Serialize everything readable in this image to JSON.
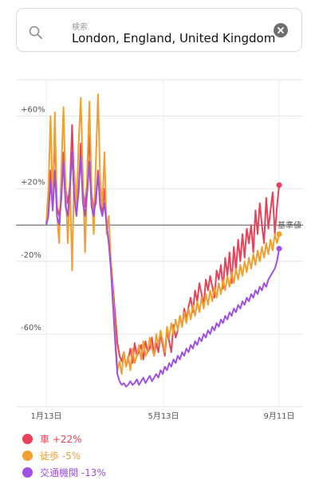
{
  "search": {
    "placeholder": "検索",
    "value": "London, England, United Kingdom"
  },
  "chart_data": {
    "type": "line",
    "x_ticks": [
      "1月13日",
      "5月13日",
      "9月11日"
    ],
    "y_ticks": [
      "+60%",
      "+20%",
      "-20%",
      "-60%"
    ],
    "ylim": [
      -100,
      80
    ],
    "baseline_label": "基準値",
    "grid": true,
    "series": [
      {
        "name": "車",
        "change": "+22%",
        "color": "#e8435a",
        "values": [
          0,
          10,
          30,
          12,
          50,
          10,
          5,
          15,
          40,
          20,
          12,
          22,
          55,
          18,
          8,
          18,
          45,
          20,
          10,
          25,
          50,
          18,
          8,
          12,
          30,
          12,
          6,
          20,
          0,
          -10,
          -20,
          -35,
          -50,
          -65,
          -72,
          -75,
          -70,
          -78,
          -74,
          -68,
          -76,
          -65,
          -72,
          -70,
          -66,
          -74,
          -64,
          -70,
          -68,
          -62,
          -72,
          -65,
          -70,
          -60,
          -66,
          -72,
          -58,
          -64,
          -70,
          -55,
          -62,
          -58,
          -50,
          -56,
          -46,
          -52,
          -45,
          -40,
          -48,
          -36,
          -42,
          -32,
          -38,
          -44,
          -30,
          -36,
          -28,
          -34,
          -40,
          -25,
          -30,
          -22,
          -35,
          -18,
          -28,
          -15,
          -32,
          -12,
          -25,
          -8,
          -20,
          -5,
          -18,
          -2,
          -10,
          0,
          -15,
          8,
          -5,
          12,
          0,
          -10,
          15,
          -2,
          8,
          18,
          -5,
          10,
          22
        ]
      },
      {
        "name": "徒歩",
        "change": "-5%",
        "color": "#f0a030",
        "values": [
          0,
          20,
          60,
          10,
          62,
          5,
          -10,
          30,
          65,
          20,
          -10,
          25,
          -25,
          30,
          10,
          45,
          70,
          25,
          -15,
          30,
          68,
          20,
          -5,
          35,
          72,
          25,
          10,
          40,
          -5,
          5,
          -20,
          -40,
          -60,
          -80,
          -75,
          -82,
          -70,
          -78,
          -72,
          -80,
          -68,
          -76,
          -72,
          -66,
          -74,
          -64,
          -72,
          -70,
          -62,
          -68,
          -72,
          -60,
          -66,
          -58,
          -64,
          -70,
          -56,
          -62,
          -54,
          -60,
          -52,
          -58,
          -50,
          -56,
          -48,
          -54,
          -46,
          -52,
          -44,
          -50,
          -42,
          -48,
          -40,
          -46,
          -38,
          -44,
          -36,
          -42,
          -34,
          -40,
          -32,
          -38,
          -30,
          -36,
          -28,
          -34,
          -26,
          -32,
          -24,
          -30,
          -22,
          -28,
          -20,
          -26,
          -18,
          -24,
          -16,
          -22,
          -14,
          -20,
          -12,
          -18,
          -10,
          -16,
          -8,
          -14,
          -5,
          -10,
          -5
        ]
      },
      {
        "name": "交通機関",
        "change": "-13%",
        "color": "#a050e0",
        "values": [
          0,
          5,
          25,
          8,
          30,
          5,
          0,
          15,
          35,
          10,
          5,
          20,
          40,
          15,
          5,
          20,
          38,
          12,
          5,
          18,
          35,
          10,
          5,
          15,
          28,
          10,
          5,
          12,
          0,
          -10,
          -25,
          -45,
          -65,
          -82,
          -86,
          -88,
          -87,
          -89,
          -88,
          -86,
          -88,
          -87,
          -85,
          -88,
          -86,
          -84,
          -87,
          -85,
          -83,
          -86,
          -84,
          -82,
          -84,
          -80,
          -82,
          -78,
          -80,
          -76,
          -78,
          -74,
          -76,
          -72,
          -74,
          -70,
          -72,
          -68,
          -70,
          -66,
          -68,
          -64,
          -66,
          -62,
          -64,
          -60,
          -62,
          -58,
          -60,
          -56,
          -58,
          -54,
          -56,
          -52,
          -54,
          -50,
          -52,
          -48,
          -50,
          -46,
          -48,
          -44,
          -46,
          -42,
          -44,
          -40,
          -42,
          -38,
          -40,
          -36,
          -38,
          -34,
          -36,
          -32,
          -34,
          -30,
          -28,
          -26,
          -24,
          -20,
          -13
        ]
      }
    ]
  }
}
